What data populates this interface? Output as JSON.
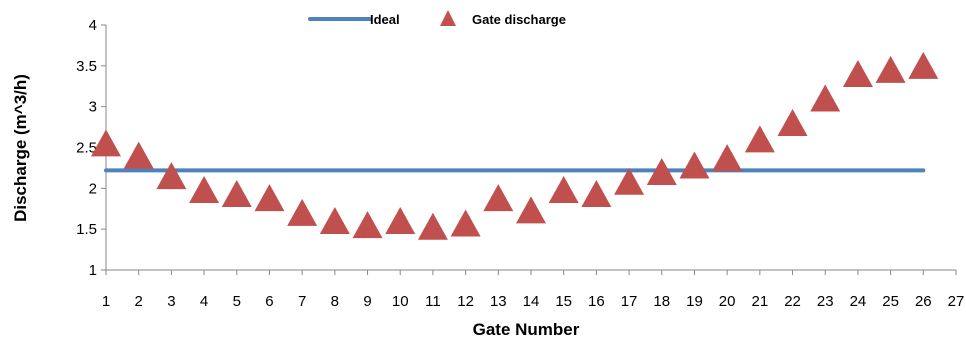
{
  "chart_data": {
    "type": "scatter",
    "title": "",
    "xlabel": "Gate Number",
    "ylabel": "Discharge (m^3/h)",
    "xlim": [
      1,
      27
    ],
    "ylim": [
      1,
      4
    ],
    "x_ticks": [
      "1",
      "2",
      "3",
      "4",
      "5",
      "6",
      "7",
      "8",
      "9",
      "10",
      "11",
      "12",
      "13",
      "14",
      "15",
      "16",
      "17",
      "18",
      "19",
      "20",
      "21",
      "22",
      "23",
      "24",
      "25",
      "26",
      "27"
    ],
    "y_ticks": [
      "1",
      "1.5",
      "2",
      "2.5",
      "3",
      "3.5",
      "4"
    ],
    "grid": false,
    "legend": "top",
    "series": [
      {
        "name": "Ideal",
        "type": "line",
        "color": "#4F81BD",
        "x": [
          1,
          26
        ],
        "y": [
          2.22,
          2.22
        ]
      },
      {
        "name": "Gate discharge",
        "type": "scatter",
        "marker": "triangle",
        "color": "#C0504D",
        "x": [
          1,
          2,
          3,
          4,
          5,
          6,
          7,
          8,
          9,
          10,
          11,
          12,
          13,
          14,
          15,
          16,
          17,
          18,
          19,
          20,
          21,
          22,
          23,
          24,
          25,
          26
        ],
        "y": [
          2.55,
          2.4,
          2.15,
          1.98,
          1.93,
          1.88,
          1.7,
          1.6,
          1.55,
          1.6,
          1.53,
          1.57,
          1.88,
          1.73,
          1.98,
          1.93,
          2.08,
          2.2,
          2.28,
          2.37,
          2.6,
          2.8,
          3.1,
          3.4,
          3.45,
          3.5
        ]
      }
    ]
  }
}
